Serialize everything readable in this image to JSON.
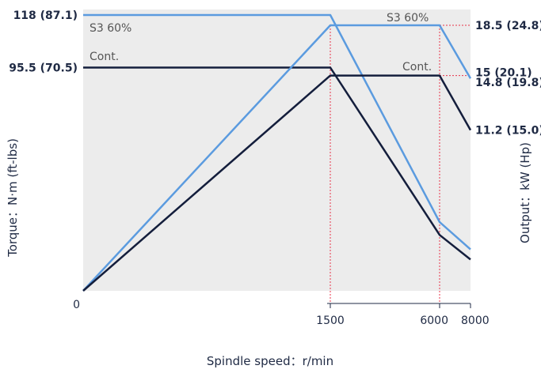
{
  "chart_data": {
    "type": "line",
    "xlabel": "Spindle speed：r/min",
    "ylabel_left": "Torque：N·m (ft-lbs)",
    "ylabel_right": "Output：kW (Hp)",
    "x_ticks": [
      "0",
      "1500",
      "6000",
      "8000"
    ],
    "x_axis_note": "speed axis segmented: 0–1500 linear, then 1500–6000 and 6000–8000 compressed",
    "left_ticks": [
      {
        "label": "118 (87.1)",
        "value": 118
      },
      {
        "label": "95.5 (70.5)",
        "value": 95.5
      }
    ],
    "right_ticks": [
      {
        "label": "18.5 (24.8)",
        "value": 18.5
      },
      {
        "label": "15 (20.1)",
        "value": 15
      },
      {
        "label": "14.8 (19.8)",
        "value": 14.8
      },
      {
        "label": "11.2 (15.0)",
        "value": 11.2
      }
    ],
    "annotations": {
      "torque_s3": "S3 60%",
      "torque_cont": "Cont.",
      "output_s3": "S3 60%",
      "output_cont": "Cont."
    },
    "series": [
      {
        "name": "S3 60%",
        "kind": "torque",
        "axis": "left",
        "color": "#5b9bdf",
        "x": [
          0,
          1500,
          6000,
          8000
        ],
        "y": [
          118,
          118,
          29.4,
          17.7
        ]
      },
      {
        "name": "Cont.",
        "kind": "torque",
        "axis": "left",
        "color": "#141e3c",
        "x": [
          0,
          1500,
          6000,
          8000
        ],
        "y": [
          95.5,
          95.5,
          23.9,
          13.4
        ]
      },
      {
        "name": "S3 60%",
        "kind": "output",
        "axis": "right",
        "color": "#5b9bdf",
        "x": [
          0,
          1500,
          6000,
          8000
        ],
        "y": [
          0,
          18.5,
          18.5,
          14.8
        ]
      },
      {
        "name": "Cont.",
        "kind": "output",
        "axis": "right",
        "color": "#141e3c",
        "x": [
          0,
          1500,
          6000,
          8000
        ],
        "y": [
          0,
          15,
          15,
          11.2
        ]
      }
    ],
    "reference_lines": [
      {
        "axis": "x",
        "value": 1500
      },
      {
        "axis": "x",
        "value": 6000
      },
      {
        "axis": "right",
        "value": 18.5
      },
      {
        "axis": "right",
        "value": 15
      }
    ],
    "colors": {
      "background": "#ececec",
      "reference": "#e8334a",
      "axis": "#1f2a44"
    },
    "grid": false,
    "legend": "none"
  }
}
